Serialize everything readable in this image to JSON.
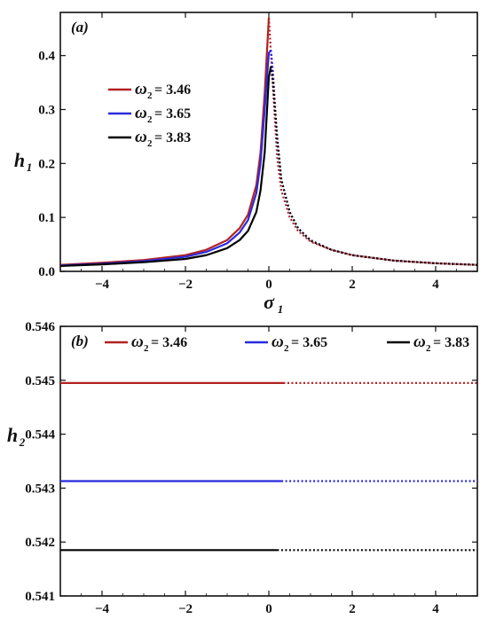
{
  "chart_data": [
    {
      "type": "line",
      "panel_label": "(a)",
      "xlabel": "σ",
      "xlabel_sub": "1",
      "ylabel": "h",
      "ylabel_sub": "1",
      "xlim": [
        -5,
        5
      ],
      "ylim": [
        0,
        0.48
      ],
      "xticks": [
        -4,
        -2,
        0,
        2,
        4
      ],
      "xtick_labels": [
        "−4",
        "−2",
        "0",
        "2",
        "4"
      ],
      "yticks": [
        0.0,
        0.1,
        0.2,
        0.3,
        0.4
      ],
      "ytick_labels": [
        "0.0",
        "0.1",
        "0.2",
        "0.3",
        "0.4"
      ],
      "legend_position": "upper-left",
      "legend_symbol": "ω",
      "legend_sub": "2",
      "series": [
        {
          "name": "= 3.46",
          "color": "#b22222",
          "solid_until": 0.05,
          "x": [
            -5,
            -4,
            -3,
            -2,
            -1.5,
            -1,
            -0.7,
            -0.5,
            -0.3,
            -0.2,
            -0.1,
            -0.05,
            0.0,
            0.1,
            0.2,
            0.3,
            0.5,
            0.7,
            1,
            1.5,
            2,
            3,
            4,
            5
          ],
          "y": [
            0.012,
            0.016,
            0.021,
            0.03,
            0.04,
            0.058,
            0.08,
            0.105,
            0.16,
            0.22,
            0.33,
            0.4,
            0.47,
            0.34,
            0.21,
            0.15,
            0.1,
            0.075,
            0.055,
            0.04,
            0.03,
            0.02,
            0.015,
            0.012
          ]
        },
        {
          "name": "= 3.65",
          "color": "#2a2adf",
          "solid_until": 0.05,
          "x": [
            -5,
            -4,
            -3,
            -2,
            -1.5,
            -1,
            -0.7,
            -0.5,
            -0.3,
            -0.2,
            -0.1,
            0.0,
            0.05,
            0.1,
            0.2,
            0.3,
            0.5,
            0.7,
            1,
            1.5,
            2,
            3,
            4,
            5
          ],
          "y": [
            0.011,
            0.014,
            0.019,
            0.027,
            0.036,
            0.052,
            0.072,
            0.095,
            0.145,
            0.2,
            0.3,
            0.405,
            0.41,
            0.37,
            0.24,
            0.17,
            0.11,
            0.08,
            0.058,
            0.04,
            0.03,
            0.02,
            0.015,
            0.012
          ]
        },
        {
          "name": "= 3.83",
          "color": "#000000",
          "solid_until": 0.05,
          "x": [
            -5,
            -4,
            -3,
            -2,
            -1.5,
            -1,
            -0.7,
            -0.5,
            -0.3,
            -0.2,
            -0.1,
            -0.05,
            0.0,
            0.05,
            0.1,
            0.2,
            0.3,
            0.5,
            0.7,
            1,
            1.5,
            2,
            3,
            4,
            5
          ],
          "y": [
            0.01,
            0.013,
            0.017,
            0.023,
            0.03,
            0.043,
            0.058,
            0.075,
            0.11,
            0.15,
            0.22,
            0.29,
            0.36,
            0.38,
            0.35,
            0.25,
            0.17,
            0.11,
            0.08,
            0.057,
            0.04,
            0.03,
            0.02,
            0.015,
            0.012
          ]
        }
      ]
    },
    {
      "type": "line",
      "panel_label": "(b)",
      "xlabel": "σ",
      "xlabel_sub": "1",
      "ylabel": "h",
      "ylabel_sub": "2",
      "xlim": [
        -5,
        5
      ],
      "ylim": [
        0.541,
        0.546
      ],
      "xticks": [
        -4,
        -2,
        0,
        2,
        4
      ],
      "xtick_labels": [
        "−4",
        "−2",
        "0",
        "2",
        "4"
      ],
      "yticks": [
        0.541,
        0.542,
        0.543,
        0.544,
        0.545,
        0.546
      ],
      "ytick_labels": [
        "0.541",
        "0.542",
        "0.543",
        "0.544",
        "0.545",
        "0.546"
      ],
      "legend_position": "top",
      "legend_symbol": "ω",
      "legend_sub": "2",
      "series": [
        {
          "name": "= 3.46",
          "color": "#b22222",
          "solid_until": 0.35,
          "x": [
            -5,
            5
          ],
          "y": [
            0.54495,
            0.54495
          ]
        },
        {
          "name": "= 3.65",
          "color": "#2a2adf",
          "solid_until": 0.3,
          "x": [
            -5,
            5
          ],
          "y": [
            0.54313,
            0.54313
          ]
        },
        {
          "name": "= 3.83",
          "color": "#000000",
          "solid_until": 0.2,
          "x": [
            -5,
            5
          ],
          "y": [
            0.54185,
            0.54185
          ]
        }
      ]
    }
  ]
}
